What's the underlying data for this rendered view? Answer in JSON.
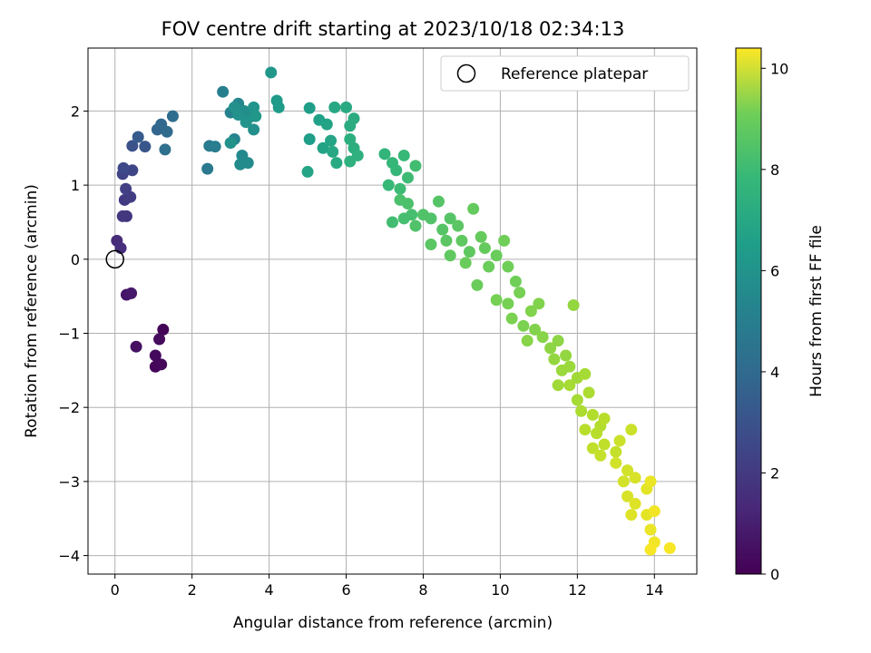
{
  "chart_data": {
    "type": "scatter",
    "title": "FOV centre drift starting at 2023/10/18 02:34:13",
    "xlabel": "Angular distance from reference (arcmin)",
    "ylabel": "Rotation from reference (arcmin)",
    "xlim": [
      -0.7,
      15.1
    ],
    "ylim": [
      -4.25,
      2.85
    ],
    "xticks": [
      0,
      2,
      4,
      6,
      8,
      10,
      12,
      14
    ],
    "yticks": [
      -4,
      -3,
      -2,
      -1,
      0,
      1,
      2
    ],
    "xtick_labels": [
      "0",
      "2",
      "4",
      "6",
      "8",
      "10",
      "12",
      "14"
    ],
    "ytick_labels": [
      "−4",
      "−3",
      "−2",
      "−1",
      "0",
      "1",
      "2"
    ],
    "grid": true,
    "legend": {
      "label": "Reference platepar",
      "placement": "top-right"
    },
    "reference_point": {
      "x": 0,
      "y": 0
    },
    "colorbar": {
      "label": "Hours from first FF file",
      "colormap": "viridis",
      "range": [
        0,
        10.4
      ],
      "ticks": [
        0,
        2,
        4,
        6,
        8,
        10
      ],
      "tick_labels": [
        "0",
        "2",
        "4",
        "6",
        "8",
        "10"
      ]
    },
    "series": [
      {
        "color_by": "hours",
        "points": [
          [
            1.25,
            -0.95,
            0.1
          ],
          [
            1.05,
            -1.45,
            0.15
          ],
          [
            1.2,
            -1.42,
            0.2
          ],
          [
            1.05,
            -1.3,
            0.25
          ],
          [
            1.15,
            -1.08,
            0.3
          ],
          [
            0.55,
            -1.18,
            0.45
          ],
          [
            0.3,
            -0.48,
            0.6
          ],
          [
            0.42,
            -0.46,
            0.7
          ],
          [
            0.05,
            0.25,
            1.3
          ],
          [
            0.15,
            0.15,
            1.4
          ],
          [
            0.3,
            0.58,
            1.6
          ],
          [
            0.2,
            0.58,
            1.7
          ],
          [
            0.25,
            0.8,
            1.8
          ],
          [
            0.4,
            0.84,
            1.9
          ],
          [
            0.28,
            0.95,
            2.0
          ],
          [
            0.2,
            1.15,
            2.1
          ],
          [
            0.45,
            1.2,
            2.2
          ],
          [
            0.22,
            1.23,
            2.3
          ],
          [
            0.45,
            1.53,
            2.6
          ],
          [
            0.78,
            1.52,
            2.8
          ],
          [
            0.6,
            1.65,
            3.0
          ],
          [
            1.1,
            1.75,
            3.4
          ],
          [
            1.2,
            1.82,
            3.5
          ],
          [
            1.35,
            1.72,
            3.6
          ],
          [
            1.5,
            1.93,
            3.7
          ],
          [
            1.3,
            1.48,
            3.8
          ],
          [
            2.4,
            1.22,
            4.2
          ],
          [
            2.45,
            1.53,
            4.3
          ],
          [
            2.6,
            1.52,
            4.4
          ],
          [
            2.8,
            2.26,
            4.5
          ],
          [
            3.0,
            1.98,
            4.6
          ],
          [
            3.1,
            1.62,
            4.7
          ],
          [
            3.2,
            2.1,
            4.8
          ],
          [
            3.3,
            1.4,
            4.9
          ],
          [
            3.45,
            1.3,
            5.0
          ],
          [
            3.25,
            1.28,
            5.0
          ],
          [
            3.35,
            2.0,
            5.1
          ],
          [
            3.5,
            1.92,
            5.1
          ],
          [
            3.1,
            2.05,
            5.2
          ],
          [
            3.6,
            1.75,
            5.2
          ],
          [
            3.2,
            1.95,
            5.3
          ],
          [
            3.0,
            1.57,
            5.3
          ],
          [
            3.4,
            1.85,
            5.4
          ],
          [
            3.6,
            2.05,
            5.4
          ],
          [
            3.65,
            1.93,
            5.5
          ],
          [
            4.05,
            2.52,
            5.5
          ],
          [
            4.2,
            2.14,
            5.6
          ],
          [
            4.25,
            2.05,
            5.7
          ],
          [
            5.05,
            2.04,
            5.8
          ],
          [
            5.05,
            1.62,
            5.8
          ],
          [
            5.3,
            1.88,
            5.9
          ],
          [
            5.4,
            1.5,
            6.0
          ],
          [
            5.5,
            1.82,
            6.0
          ],
          [
            5.6,
            1.6,
            6.1
          ],
          [
            5.0,
            1.18,
            6.1
          ],
          [
            5.7,
            2.05,
            6.2
          ],
          [
            5.65,
            1.45,
            6.2
          ],
          [
            5.75,
            1.3,
            6.3
          ],
          [
            6.0,
            2.05,
            6.3
          ],
          [
            6.1,
            1.8,
            6.4
          ],
          [
            6.2,
            1.9,
            6.4
          ],
          [
            6.1,
            1.62,
            6.5
          ],
          [
            6.2,
            1.5,
            6.5
          ],
          [
            6.3,
            1.4,
            6.6
          ],
          [
            6.1,
            1.32,
            6.6
          ],
          [
            7.0,
            1.42,
            6.8
          ],
          [
            7.2,
            1.3,
            6.9
          ],
          [
            7.3,
            1.2,
            6.9
          ],
          [
            7.1,
            1.0,
            7.0
          ],
          [
            7.5,
            1.4,
            7.0
          ],
          [
            7.4,
            0.95,
            7.1
          ],
          [
            7.6,
            1.1,
            7.1
          ],
          [
            7.8,
            1.26,
            7.2
          ],
          [
            7.2,
            0.5,
            7.2
          ],
          [
            7.5,
            0.55,
            7.3
          ],
          [
            7.7,
            0.6,
            7.3
          ],
          [
            7.4,
            0.8,
            7.4
          ],
          [
            7.6,
            0.75,
            7.4
          ],
          [
            7.8,
            0.45,
            7.5
          ],
          [
            8.0,
            0.6,
            7.5
          ],
          [
            8.2,
            0.55,
            7.5
          ],
          [
            8.4,
            0.78,
            7.6
          ],
          [
            8.5,
            0.4,
            7.6
          ],
          [
            8.7,
            0.55,
            7.6
          ],
          [
            8.2,
            0.2,
            7.7
          ],
          [
            8.6,
            0.25,
            7.7
          ],
          [
            8.9,
            0.45,
            7.7
          ],
          [
            8.7,
            0.05,
            7.8
          ],
          [
            9.0,
            0.25,
            7.8
          ],
          [
            9.2,
            0.1,
            7.8
          ],
          [
            9.3,
            0.68,
            7.9
          ],
          [
            9.5,
            0.3,
            7.9
          ],
          [
            9.6,
            0.15,
            7.9
          ],
          [
            9.1,
            -0.05,
            8.0
          ],
          [
            9.4,
            -0.35,
            8.0
          ],
          [
            9.7,
            -0.1,
            8.0
          ],
          [
            9.9,
            0.05,
            8.0
          ],
          [
            10.1,
            0.25,
            8.1
          ],
          [
            10.2,
            -0.1,
            8.1
          ],
          [
            10.4,
            -0.3,
            8.1
          ],
          [
            9.9,
            -0.55,
            8.2
          ],
          [
            10.2,
            -0.6,
            8.2
          ],
          [
            10.5,
            -0.45,
            8.2
          ],
          [
            10.3,
            -0.8,
            8.3
          ],
          [
            10.6,
            -0.9,
            8.3
          ],
          [
            10.8,
            -0.7,
            8.4
          ],
          [
            11.0,
            -0.6,
            8.4
          ],
          [
            10.9,
            -0.95,
            8.4
          ],
          [
            10.7,
            -1.1,
            8.5
          ],
          [
            11.1,
            -1.05,
            8.5
          ],
          [
            11.3,
            -1.2,
            8.6
          ],
          [
            11.5,
            -1.1,
            8.6
          ],
          [
            11.4,
            -1.35,
            8.7
          ],
          [
            11.7,
            -1.3,
            8.7
          ],
          [
            11.9,
            -0.62,
            8.7
          ],
          [
            11.6,
            -1.5,
            8.8
          ],
          [
            11.8,
            -1.45,
            8.8
          ],
          [
            12.0,
            -1.6,
            8.9
          ],
          [
            11.5,
            -1.7,
            8.9
          ],
          [
            11.8,
            -1.7,
            9.0
          ],
          [
            12.0,
            -1.9,
            9.0
          ],
          [
            12.2,
            -1.55,
            9.0
          ],
          [
            12.3,
            -1.8,
            9.1
          ],
          [
            12.1,
            -2.05,
            9.1
          ],
          [
            12.4,
            -2.1,
            9.2
          ],
          [
            12.6,
            -2.25,
            9.2
          ],
          [
            12.2,
            -2.3,
            9.3
          ],
          [
            12.5,
            -2.35,
            9.3
          ],
          [
            12.7,
            -2.15,
            9.3
          ],
          [
            12.4,
            -2.55,
            9.4
          ],
          [
            12.7,
            -2.5,
            9.4
          ],
          [
            12.6,
            -2.65,
            9.5
          ],
          [
            13.0,
            -2.6,
            9.5
          ],
          [
            13.4,
            -2.3,
            9.6
          ],
          [
            13.1,
            -2.45,
            9.6
          ],
          [
            13.0,
            -2.75,
            9.7
          ],
          [
            13.3,
            -2.85,
            9.7
          ],
          [
            13.2,
            -3.0,
            9.7
          ],
          [
            13.5,
            -2.95,
            9.8
          ],
          [
            13.3,
            -3.2,
            9.8
          ],
          [
            13.5,
            -3.3,
            9.9
          ],
          [
            13.4,
            -3.45,
            9.9
          ],
          [
            13.8,
            -3.1,
            10.0
          ],
          [
            13.8,
            -3.45,
            10.0
          ],
          [
            13.9,
            -3.65,
            10.1
          ],
          [
            13.9,
            -3.0,
            10.1
          ],
          [
            14.0,
            -3.4,
            10.2
          ],
          [
            14.0,
            -3.82,
            10.2
          ],
          [
            13.9,
            -3.92,
            10.3
          ],
          [
            14.4,
            -3.9,
            10.3
          ]
        ]
      }
    ]
  }
}
